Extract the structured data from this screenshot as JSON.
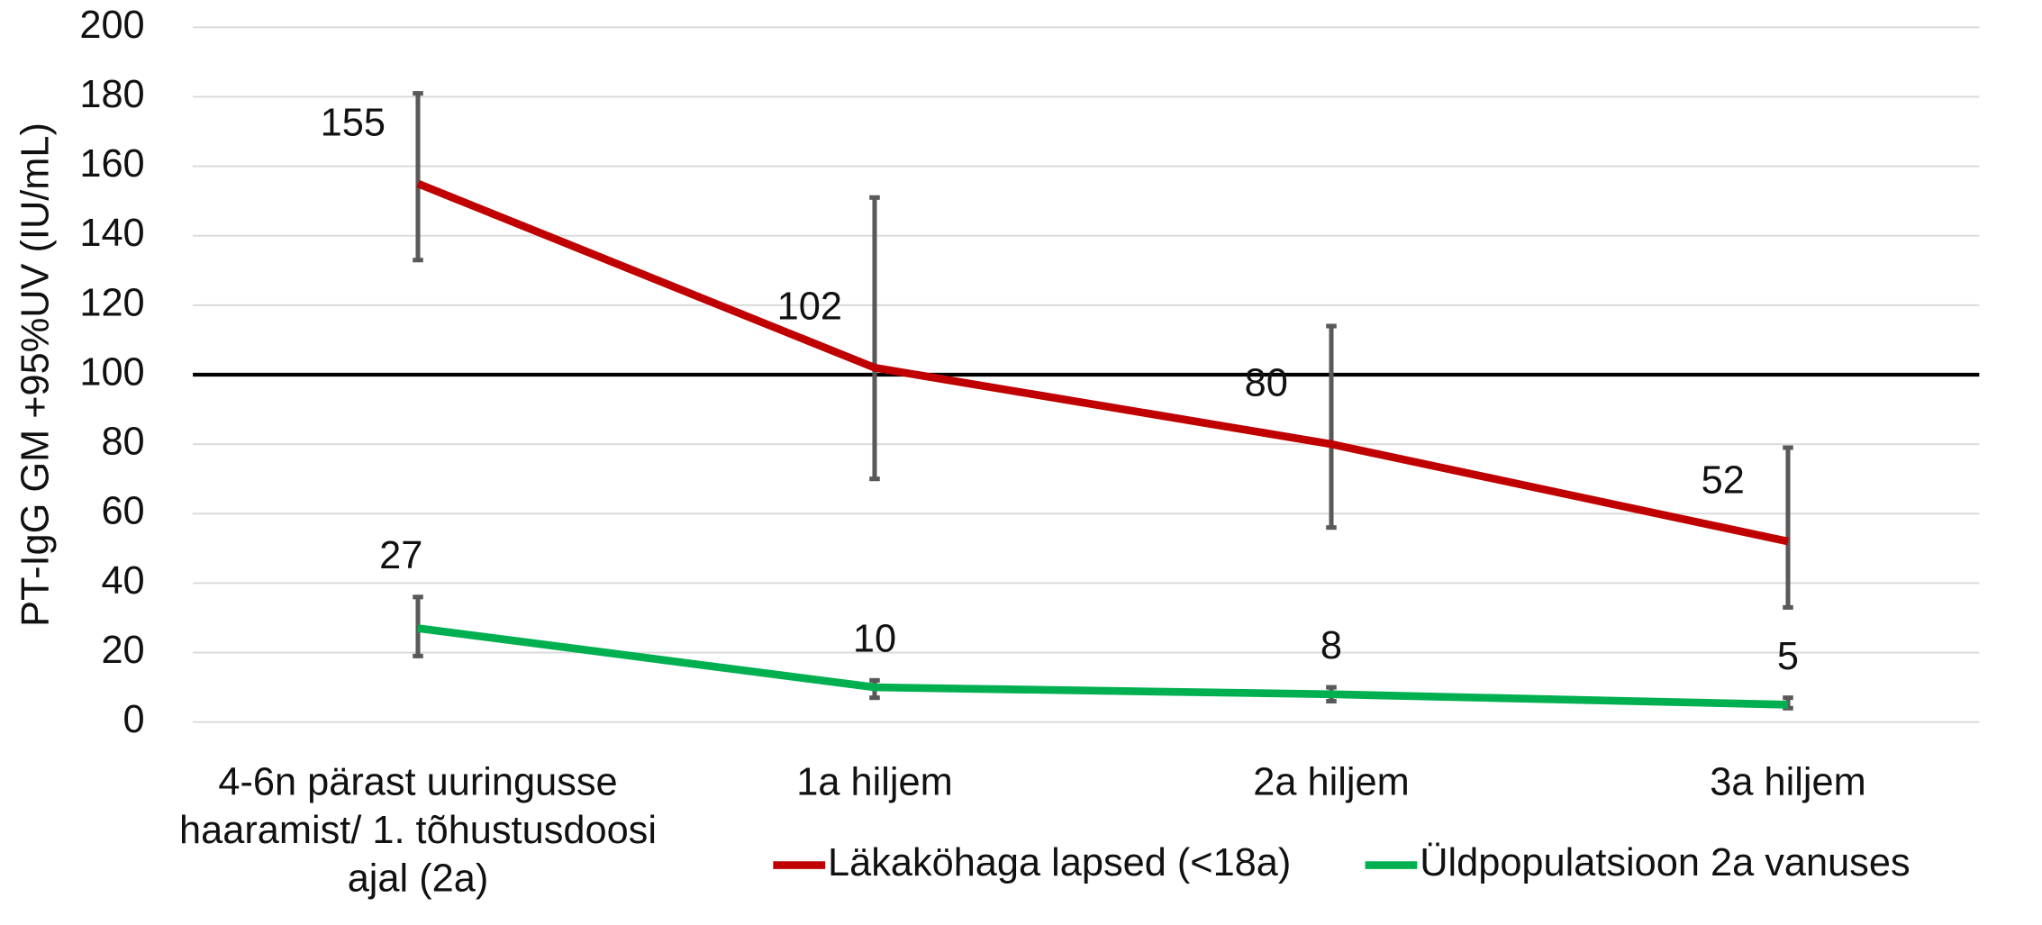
{
  "chart_data": {
    "type": "line",
    "y_label": "PT-IgG GM +95%UV (IU/mL)",
    "categories": [
      "4-6n pärast uuringusse haaramist/ 1. tõhustusdoosi ajal (2a)",
      "1a hiljem",
      "2a hiljem",
      "3a hiljem"
    ],
    "series": [
      {
        "name": "Läkaköhaga lapsed (<18a)",
        "color": "#c00000",
        "values": [
          155,
          102,
          80,
          52
        ],
        "lower": [
          133,
          70,
          56,
          33
        ],
        "upper": [
          181,
          151,
          114,
          79
        ]
      },
      {
        "name": "Üldpopulatsioon 2a vanuses",
        "color": "#00b050",
        "values": [
          27,
          10,
          8,
          5
        ],
        "lower": [
          19,
          7,
          6,
          4
        ],
        "upper": [
          36,
          12,
          10,
          7
        ]
      }
    ],
    "ref_line": 100,
    "ylim": [
      0,
      200
    ],
    "yticks": [
      0,
      20,
      40,
      60,
      80,
      100,
      120,
      140,
      160,
      180,
      200
    ],
    "grid": true,
    "legend": "bottom"
  }
}
